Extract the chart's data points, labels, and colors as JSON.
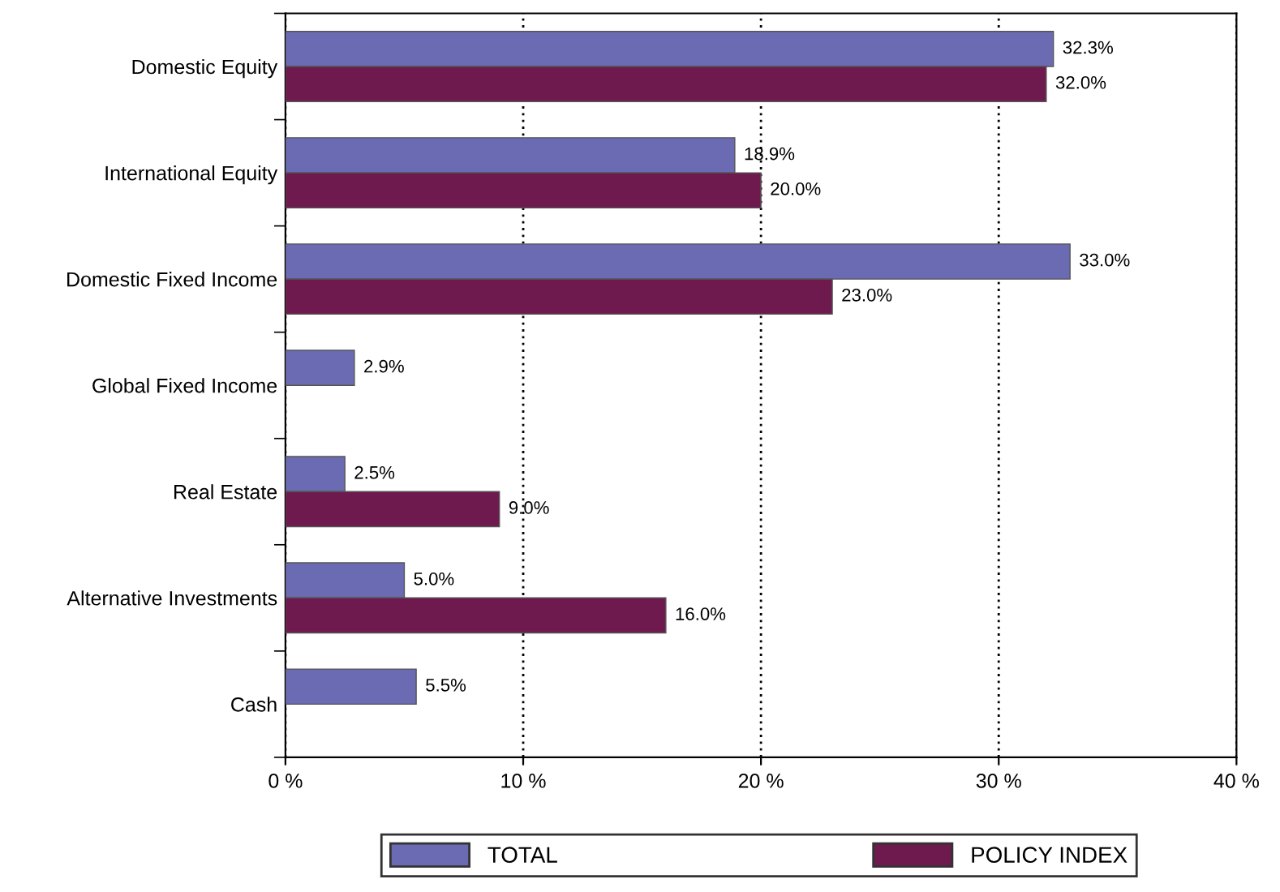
{
  "chart_data": {
    "type": "bar",
    "orientation": "horizontal",
    "categories": [
      "Domestic Equity",
      "International Equity",
      "Domestic Fixed Income",
      "Global Fixed Income",
      "Real Estate",
      "Alternative Investments",
      "Cash"
    ],
    "series": [
      {
        "name": "TOTAL",
        "color": "#6b6bb3",
        "values": [
          32.3,
          18.9,
          33.0,
          2.9,
          2.5,
          5.0,
          5.5
        ],
        "value_labels": [
          "32.3%",
          "18.9%",
          "33.0%",
          "2.9%",
          "2.5%",
          "5.0%",
          "5.5%"
        ]
      },
      {
        "name": "POLICY INDEX",
        "color": "#6e1a4f",
        "values": [
          32.0,
          20.0,
          23.0,
          null,
          9.0,
          16.0,
          null
        ],
        "value_labels": [
          "32.0%",
          "20.0%",
          "23.0%",
          null,
          "9.0%",
          "16.0%",
          null
        ]
      }
    ],
    "xlim": [
      0,
      40
    ],
    "xticks": [
      {
        "value": 0,
        "label": "0 %"
      },
      {
        "value": 10,
        "label": "10 %"
      },
      {
        "value": 20,
        "label": "20 %"
      },
      {
        "value": 30,
        "label": "30 %"
      },
      {
        "value": 40,
        "label": "40 %"
      }
    ],
    "grid": "x",
    "legend": "bottom"
  }
}
